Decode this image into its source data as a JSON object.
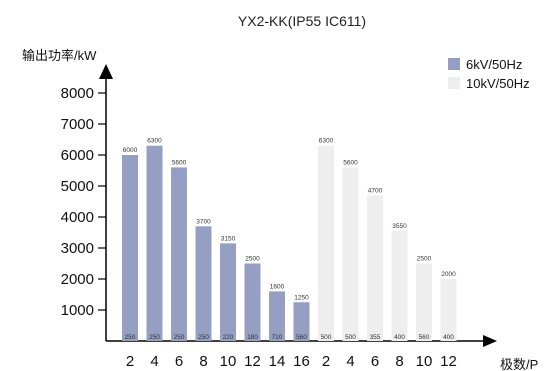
{
  "chart_data": {
    "type": "bar",
    "title": "YX2-KK(IP55 IC611)",
    "ylabel": "输出功率/kW",
    "xlabel": "极数/P",
    "ylim": [
      0,
      8000
    ],
    "yticks": [
      1000,
      2000,
      3000,
      4000,
      5000,
      6000,
      7000,
      8000
    ],
    "legend_position": "top-right",
    "series": [
      {
        "name": "6kV/50Hz",
        "color": "#959fc4",
        "categories": [
          "2",
          "4",
          "6",
          "8",
          "10",
          "12",
          "14",
          "16"
        ],
        "values": [
          6000,
          6300,
          5600,
          3700,
          3150,
          2500,
          1600,
          1250
        ],
        "min_values": [
          250,
          250,
          250,
          250,
          220,
          180,
          710,
          560
        ]
      },
      {
        "name": "10kV/50Hz",
        "color": "#eeeeee",
        "categories": [
          "2",
          "4",
          "6",
          "8",
          "10",
          "12"
        ],
        "values": [
          6300,
          5600,
          4700,
          3550,
          2500,
          2000
        ],
        "min_values": [
          500,
          500,
          355,
          400,
          560,
          400
        ]
      }
    ]
  }
}
